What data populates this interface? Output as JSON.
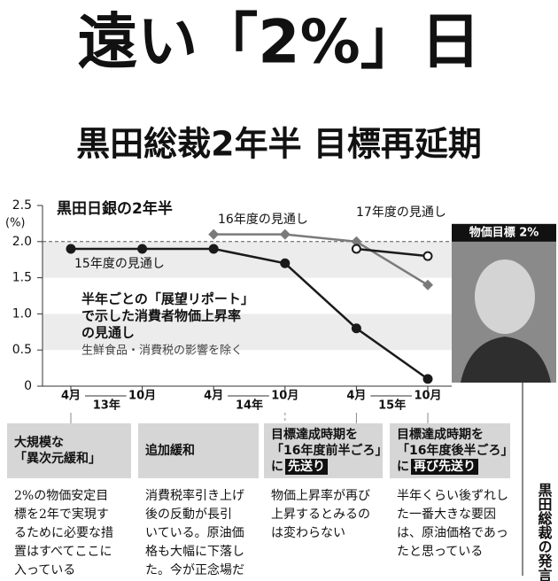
{
  "title": "遠い「2%」日",
  "subtitle": "黒田総裁2年半 目標再延期",
  "chart_data": {
    "type": "line",
    "title": "黒田日銀の2年半",
    "y_unit": "(%)",
    "categories": [
      "4月",
      "10月",
      "4月",
      "10月",
      "4月",
      "10月"
    ],
    "years": [
      "13年",
      "14年",
      "15年"
    ],
    "series": [
      {
        "name": "15年度の見通し",
        "color": "#1a1a1a",
        "marker": "filled-circle",
        "values": [
          1.9,
          1.9,
          1.9,
          1.7,
          0.8,
          0.1
        ]
      },
      {
        "name": "16年度の見通し",
        "color": "#7a7a7a",
        "marker": "diamond",
        "values": [
          null,
          null,
          2.1,
          2.1,
          2.0,
          1.4
        ]
      },
      {
        "name": "17年度の見通し",
        "color": "#1a1a1a",
        "marker": "open-circle",
        "values": [
          null,
          null,
          null,
          null,
          1.9,
          1.8
        ]
      }
    ],
    "ylim": [
      0,
      2.5
    ],
    "yticks": [
      0,
      0.5,
      {
        "value": 1,
        "label": "1.0"
      },
      1.5,
      {
        "value": 2,
        "label": "2.0"
      },
      2.5
    ],
    "target": {
      "value": 2,
      "label": "物価目標 2%"
    },
    "annotation": [
      "半年ごとの「展望リポート」",
      "で示した消費者物価上昇率",
      "の見通し"
    ],
    "note": "生鮮食品・消費税の影響を除く"
  },
  "events": [
    {
      "heading": [
        "大規模な",
        "「異次元緩和」"
      ],
      "quote": [
        "2%の物価安定目",
        "標を2年で実現す",
        "るために必要な措",
        "置はすべてここに",
        "入っている"
      ]
    },
    {
      "heading": [
        "追加緩和"
      ],
      "quote": [
        "消費税率引き上げ",
        "後の反動が長引",
        "いている。原油価",
        "格も大幅に下落し",
        "た。今が正念場だ"
      ]
    },
    {
      "heading": [
        "目標達成時期を",
        "「16年度前半ごろ」"
      ],
      "heading_suffix": "に",
      "heading_em": "先送り",
      "quote": [
        "物価上昇率が再び",
        "上昇するとみるの",
        "は変わらない"
      ]
    },
    {
      "heading": [
        "目標達成時期を",
        "「16年度後半ごろ」"
      ],
      "heading_suffix": "に",
      "heading_em": "再び先送り",
      "quote": [
        "半年くらい後ずれし",
        "た一番大きな要因",
        "は、原油価格であっ",
        "たと思っている"
      ]
    }
  ],
  "side_label": "黒田総裁の発言"
}
